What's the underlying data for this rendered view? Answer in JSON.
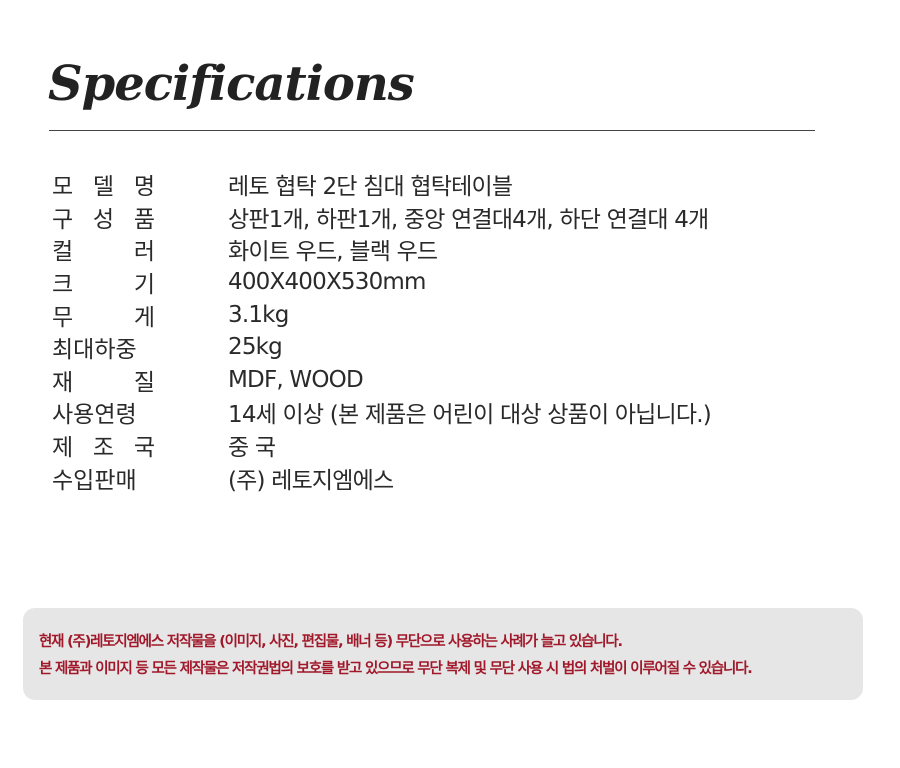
{
  "title": "Specifications",
  "specs": [
    {
      "label": "모 델 명",
      "value": "레토 협탁 2단 침대 협탁테이블"
    },
    {
      "label": "구 성 품",
      "value": "상판1개, 하판1개, 중앙 연결대4개, 하단 연결대 4개"
    },
    {
      "label": "컬 러",
      "value": "화이트 우드, 블랙 우드"
    },
    {
      "label": "크 기",
      "value": "400X400X530mm"
    },
    {
      "label": "무 게",
      "value": "3.1kg"
    },
    {
      "label": "최대하중",
      "value": "25kg"
    },
    {
      "label": "재 질",
      "value": "MDF, WOOD"
    },
    {
      "label": "사용연령",
      "value": "14세  이상 (본 제품은 어린이 대상 상품이 아닙니다.)"
    },
    {
      "label": "제 조 국",
      "value": "중 국"
    },
    {
      "label": "수입판매",
      "value": "(주) 레토지엠에스"
    }
  ],
  "notice": {
    "line1": "현재 (주)레토지엠에스 저작물을 (이미지, 사진, 편집물, 배너 등) 무단으로 사용하는 사례가 늘고 있습니다.",
    "line2": "본 제품과 이미지 등 모든 제작물은 저작권법의 보호를 받고 있으므로  무단 복제 및 무단 사용 시 법의 처벌이 이루어질 수 있습니다.",
    "color": "#a0182a"
  }
}
